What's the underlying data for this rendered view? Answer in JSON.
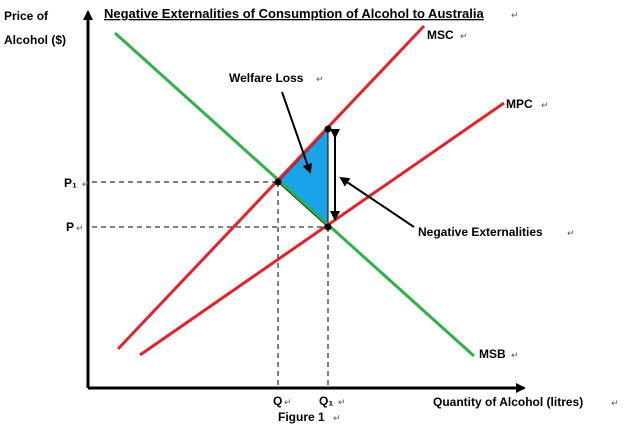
{
  "diagram": {
    "title": "Negative Externalities of Consumption of Alcohol to Australia",
    "y_axis_label_line1": "Price of",
    "y_axis_label_line2": "Alcohol ($)",
    "x_axis_label": "Quantity of Alcohol (litres)",
    "caption": "Figure 1",
    "curves": {
      "msc": "MSC",
      "mpc": "MPC",
      "msb": "MSB"
    },
    "price_labels": {
      "p1": "P₁",
      "p": "P"
    },
    "quantity_labels": {
      "q": "Q",
      "q1": "Q₁"
    },
    "annotations": {
      "welfare_loss": "Welfare Loss",
      "negative_externalities": "Negative Externalities"
    },
    "return_mark": "↵",
    "colors": {
      "private_and_social_cost": "#e8202a",
      "benefit": "#2db34a",
      "welfare_loss_fill": "#1aa3e8",
      "axes": "#000000",
      "guides": "#000000"
    }
  }
}
